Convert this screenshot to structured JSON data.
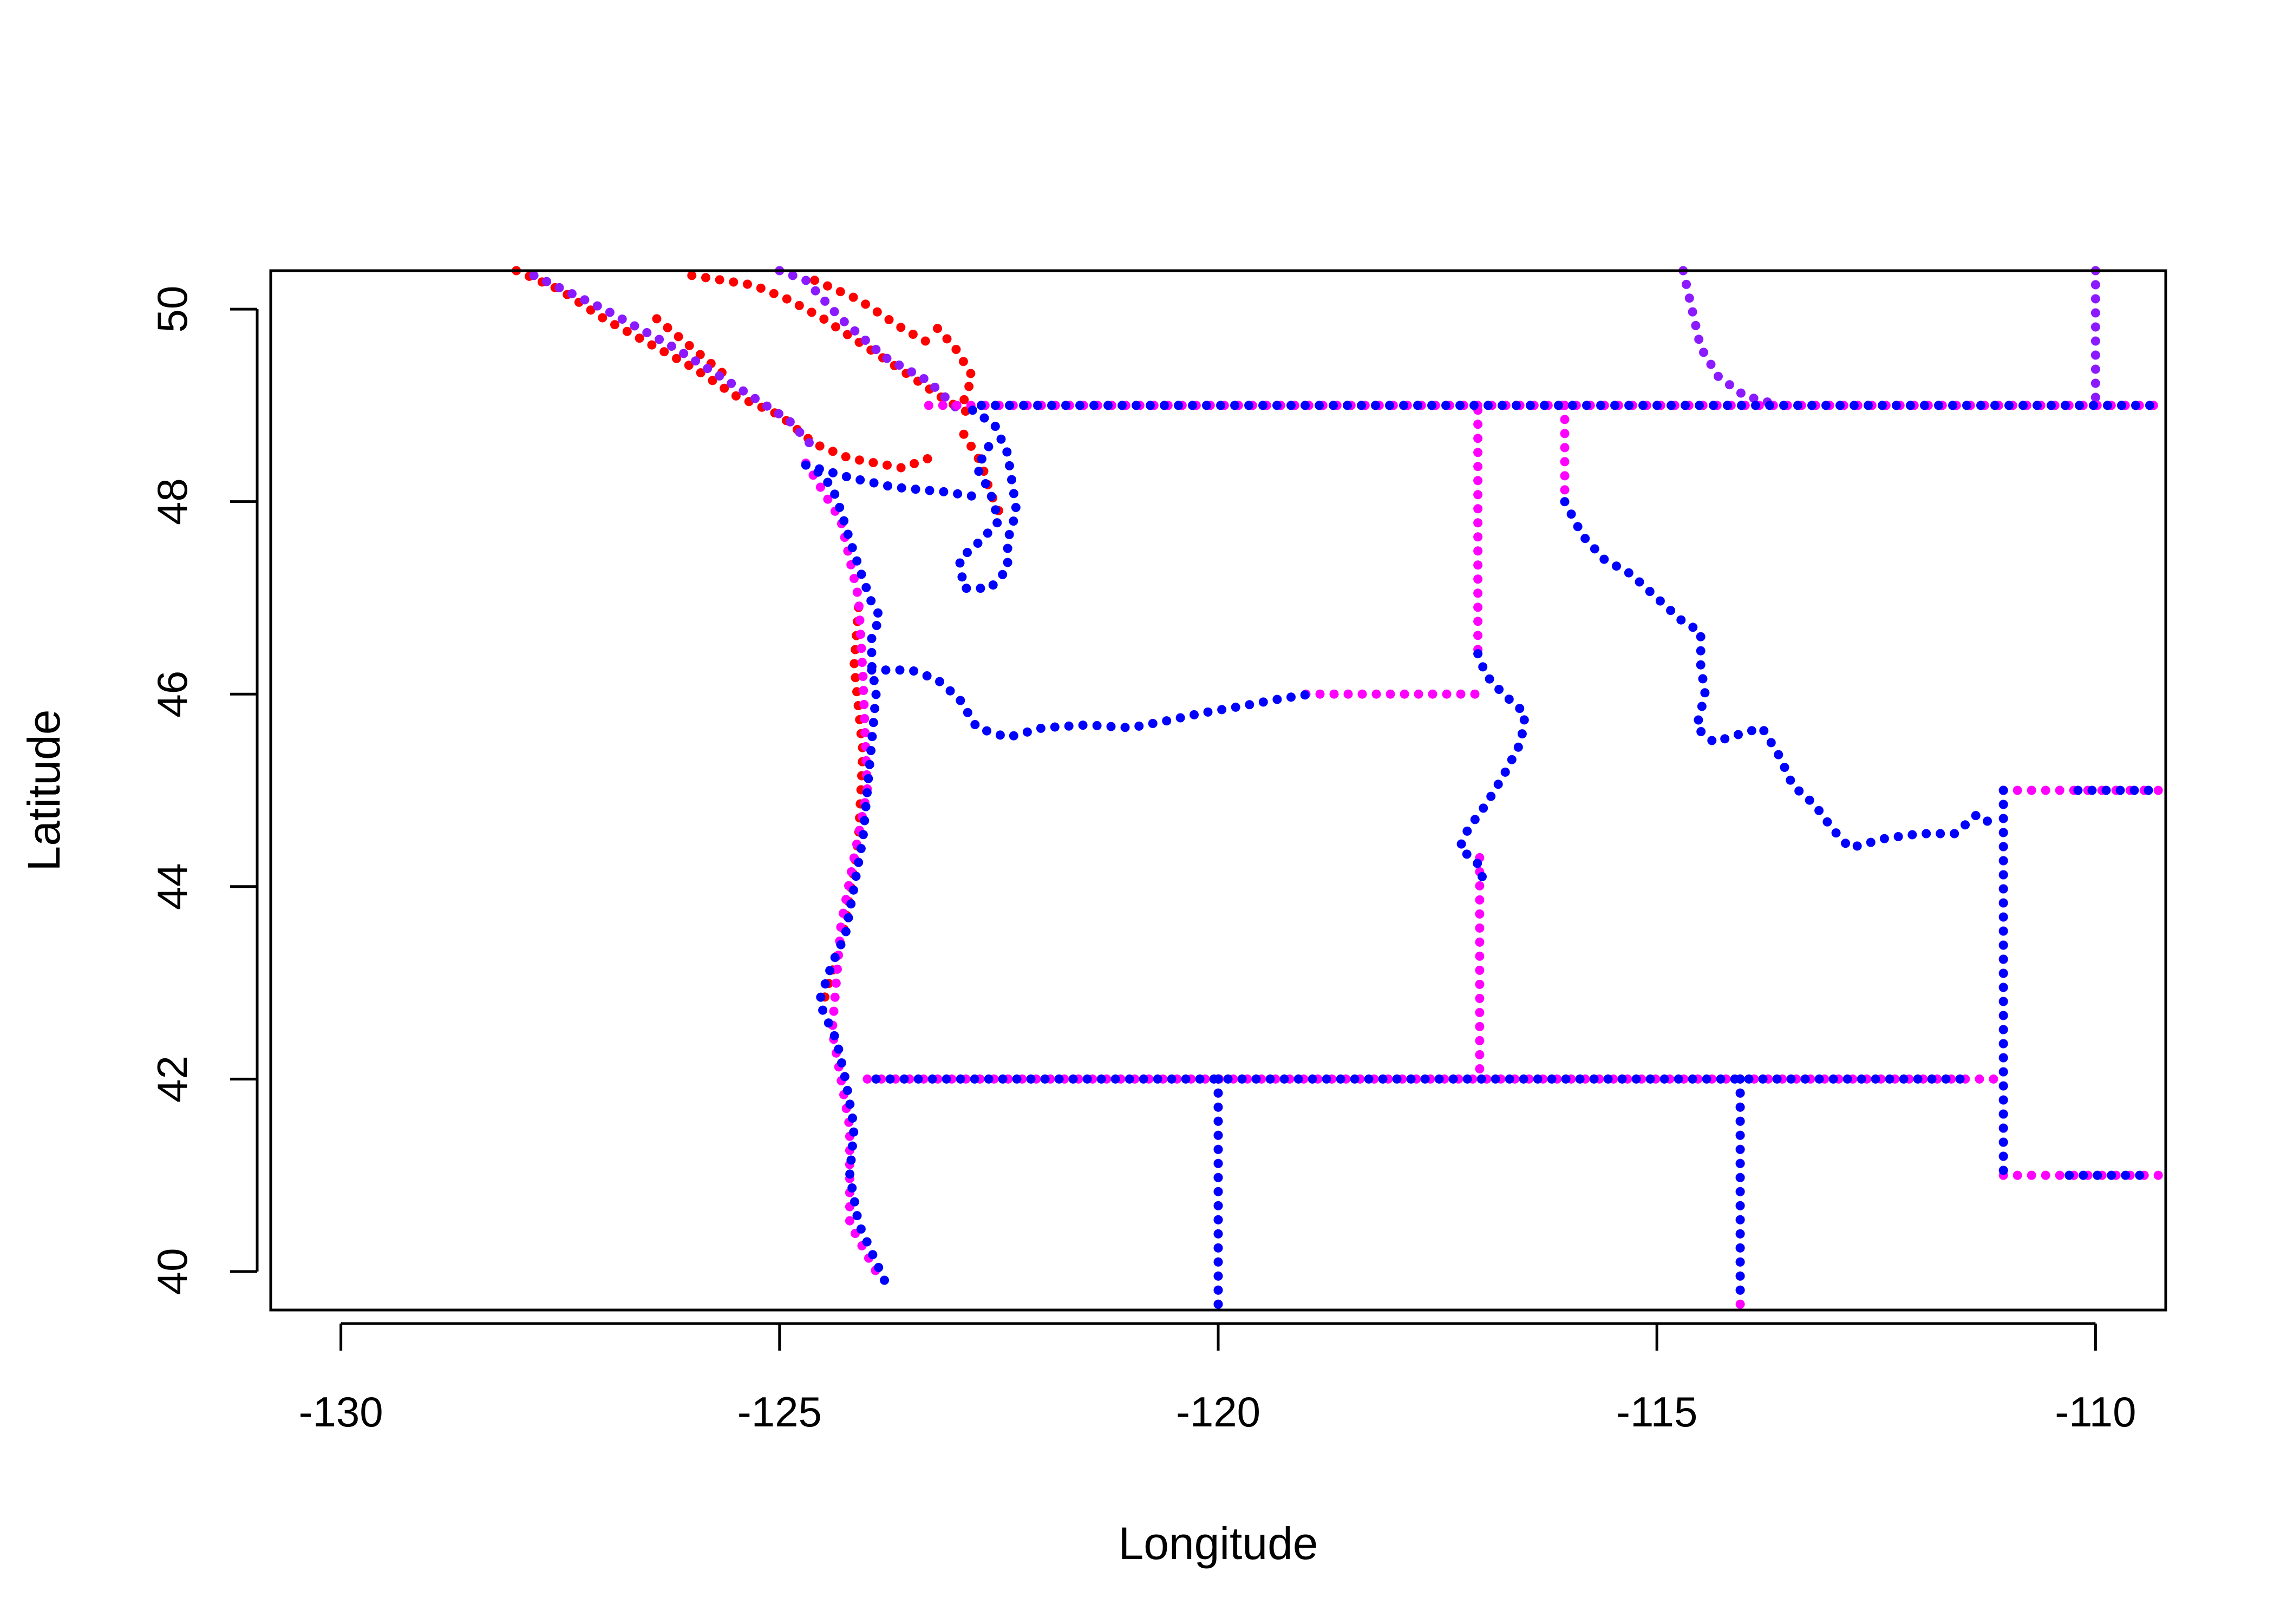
{
  "chart_data": {
    "type": "scatter",
    "title": "",
    "xlabel": "Longitude",
    "ylabel": "Latitude",
    "xlim": [
      -130.8,
      -109.2
    ],
    "ylim": [
      39.6,
      50.4
    ],
    "xticks": [
      -130,
      -125,
      -120,
      -115,
      -110
    ],
    "xtick_labels": [
      "-130",
      "-125",
      "-120",
      "-115",
      "-110"
    ],
    "yticks": [
      40,
      42,
      44,
      46,
      48,
      50
    ],
    "ytick_labels": [
      "40",
      "42",
      "44",
      "46",
      "48",
      "50"
    ],
    "grid": false,
    "legend": "none",
    "colors": {
      "red": "#ff0000",
      "purple": "#8b1aff",
      "magenta": "#ff00ff",
      "blue": "#0000ff"
    },
    "series": [
      {
        "color": "red",
        "note": "coastline points (British Columbia / Salish Sea)",
        "paths": [
          [
            [
              -128.0,
              50.4
            ],
            [
              -127.5,
              50.2
            ],
            [
              -127.0,
              49.9
            ],
            [
              -126.6,
              49.7
            ],
            [
              -126.0,
              49.4
            ],
            [
              -125.5,
              49.1
            ],
            [
              -125.0,
              48.9
            ],
            [
              -124.6,
              48.6
            ],
            [
              -124.2,
              48.45
            ],
            [
              -123.6,
              48.35
            ],
            [
              -123.3,
              48.45
            ]
          ],
          [
            [
              -126.4,
              49.9
            ],
            [
              -126.0,
              49.6
            ],
            [
              -125.6,
              49.3
            ]
          ],
          [
            [
              -126.0,
              50.35
            ],
            [
              -125.3,
              50.25
            ],
            [
              -124.9,
              50.1
            ],
            [
              -124.5,
              49.9
            ],
            [
              -124.0,
              49.6
            ],
            [
              -123.5,
              49.3
            ],
            [
              -123.1,
              49.05
            ],
            [
              -122.8,
              48.9
            ]
          ],
          [
            [
              -124.6,
              50.3
            ],
            [
              -124.1,
              50.1
            ],
            [
              -123.6,
              49.8
            ],
            [
              -123.2,
              49.6
            ]
          ],
          [
            [
              -123.2,
              49.8
            ],
            [
              -123.0,
              49.6
            ],
            [
              -122.8,
              49.3
            ],
            [
              -122.9,
              49.05
            ]
          ],
          [
            [
              -122.9,
              48.7
            ],
            [
              -122.7,
              48.4
            ],
            [
              -122.6,
              48.1
            ],
            [
              -122.5,
              47.9
            ]
          ],
          [
            [
              -124.1,
              46.9
            ],
            [
              -124.15,
              46.3
            ],
            [
              -124.05,
              45.4
            ],
            [
              -124.1,
              44.5
            ],
            [
              -124.25,
              43.6
            ],
            [
              -124.5,
              42.8
            ]
          ]
        ]
      },
      {
        "color": "purple",
        "note": "border and coastline points",
        "paths": [
          [
            [
              -127.8,
              50.35
            ],
            [
              -127.0,
              50.0
            ],
            [
              -126.2,
              49.6
            ],
            [
              -125.5,
              49.2
            ],
            [
              -124.9,
              48.85
            ],
            [
              -124.6,
              48.55
            ]
          ],
          [
            [
              -125.0,
              50.4
            ],
            [
              -124.7,
              50.3
            ],
            [
              -124.3,
              49.9
            ],
            [
              -123.8,
              49.5
            ],
            [
              -123.3,
              49.25
            ],
            [
              -122.9,
              48.9
            ]
          ],
          [
            [
              -114.7,
              50.4
            ],
            [
              -114.6,
              50.0
            ],
            [
              -114.5,
              49.6
            ],
            [
              -114.3,
              49.3
            ],
            [
              -114.0,
              49.1
            ],
            [
              -113.6,
              49.0
            ]
          ],
          [
            [
              -110.0,
              50.4
            ],
            [
              -110.0,
              49.9
            ],
            [
              -110.0,
              49.4
            ],
            [
              -110.0,
              49.0
            ]
          ]
        ]
      },
      {
        "color": "magenta",
        "note": "state border points",
        "paths": [
          [
            [
              -123.3,
              49.0
            ],
            [
              -122.8,
              49.0
            ],
            [
              -120.0,
              49.0
            ],
            [
              -117.0,
              49.0
            ],
            [
              -116.05,
              49.0
            ],
            [
              -113.0,
              49.0
            ],
            [
              -111.0,
              49.0
            ],
            [
              -109.2,
              49.0
            ]
          ],
          [
            [
              -117.04,
              48.95
            ],
            [
              -117.04,
              47.5
            ],
            [
              -117.04,
              46.45
            ]
          ],
          [
            [
              -116.05,
              49.0
            ],
            [
              -116.05,
              48.0
            ]
          ],
          [
            [
              -119.0,
              46.0
            ],
            [
              -118.0,
              46.0
            ],
            [
              -117.0,
              46.0
            ]
          ],
          [
            [
              -117.02,
              44.3
            ],
            [
              -117.02,
              43.0
            ],
            [
              -117.02,
              42.0
            ]
          ],
          [
            [
              -124.0,
              42.0
            ],
            [
              -122.0,
              42.0
            ],
            [
              -120.0,
              42.0
            ],
            [
              -118.0,
              42.0
            ],
            [
              -116.0,
              42.0
            ],
            [
              -114.0,
              42.0
            ],
            [
              -111.05,
              42.0
            ]
          ],
          [
            [
              -120.0,
              42.0
            ],
            [
              -120.0,
              41.0
            ],
            [
              -120.0,
              39.6
            ]
          ],
          [
            [
              -114.05,
              42.0
            ],
            [
              -114.05,
              41.0
            ],
            [
              -114.05,
              39.6
            ]
          ],
          [
            [
              -111.05,
              45.0
            ],
            [
              -111.05,
              43.0
            ],
            [
              -111.05,
              41.0
            ]
          ],
          [
            [
              -111.05,
              45.0
            ],
            [
              -109.2,
              45.0
            ]
          ],
          [
            [
              -111.05,
              41.0
            ],
            [
              -109.2,
              41.0
            ]
          ],
          [
            [
              -124.7,
              48.4
            ],
            [
              -124.3,
              47.8
            ],
            [
              -124.1,
              47.0
            ],
            [
              -124.05,
              46.2
            ],
            [
              -124.0,
              45.0
            ],
            [
              -124.3,
              43.6
            ],
            [
              -124.4,
              42.5
            ],
            [
              -124.2,
              41.5
            ],
            [
              -124.2,
              40.5
            ],
            [
              -123.9,
              40.0
            ]
          ]
        ]
      },
      {
        "color": "blue",
        "note": "coastline and state border points",
        "paths": [
          [
            [
              -124.7,
              48.38
            ],
            [
              -124.55,
              48.3
            ],
            [
              -124.4,
              48.15
            ],
            [
              -124.3,
              47.9
            ],
            [
              -124.2,
              47.6
            ],
            [
              -124.05,
              47.2
            ],
            [
              -123.95,
              46.95
            ],
            [
              -123.85,
              46.8
            ],
            [
              -123.95,
              46.6
            ],
            [
              -123.95,
              46.3
            ],
            [
              -123.9,
              46.0
            ],
            [
              -123.95,
              45.5
            ],
            [
              -124.0,
              45.0
            ],
            [
              -124.05,
              44.5
            ],
            [
              -124.15,
              44.0
            ],
            [
              -124.25,
              43.5
            ],
            [
              -124.4,
              43.2
            ],
            [
              -124.55,
              42.8
            ],
            [
              -124.35,
              42.4
            ],
            [
              -124.25,
              42.0
            ],
            [
              -124.15,
              41.5
            ],
            [
              -124.2,
              41.0
            ],
            [
              -124.1,
              40.5
            ],
            [
              -123.95,
              40.2
            ],
            [
              -123.75,
              39.8
            ]
          ],
          [
            [
              -124.7,
              48.38
            ],
            [
              -124.2,
              48.25
            ],
            [
              -123.7,
              48.15
            ],
            [
              -123.1,
              48.1
            ],
            [
              -122.75,
              48.05
            ]
          ],
          [
            [
              -122.8,
              48.95
            ],
            [
              -122.55,
              48.8
            ],
            [
              -122.4,
              48.5
            ],
            [
              -122.35,
              48.2
            ],
            [
              -122.3,
              47.9
            ],
            [
              -122.4,
              47.6
            ],
            [
              -122.4,
              47.3
            ],
            [
              -122.6,
              47.1
            ],
            [
              -122.9,
              47.1
            ],
            [
              -122.95,
              47.4
            ],
            [
              -122.7,
              47.6
            ],
            [
              -122.5,
              47.8
            ],
            [
              -122.6,
              48.1
            ],
            [
              -122.75,
              48.35
            ],
            [
              -122.6,
              48.6
            ]
          ],
          [
            [
              -123.95,
              46.25
            ],
            [
              -123.5,
              46.25
            ],
            [
              -123.2,
              46.15
            ],
            [
              -122.95,
              45.95
            ],
            [
              -122.75,
              45.65
            ],
            [
              -122.4,
              45.55
            ],
            [
              -122.0,
              45.65
            ],
            [
              -121.5,
              45.68
            ],
            [
              -121.0,
              45.65
            ],
            [
              -120.6,
              45.72
            ],
            [
              -120.2,
              45.8
            ],
            [
              -119.7,
              45.88
            ],
            [
              -119.3,
              45.95
            ],
            [
              -118.95,
              46.0
            ]
          ],
          [
            [
              -117.04,
              46.42
            ],
            [
              -116.95,
              46.2
            ],
            [
              -116.75,
              46.0
            ],
            [
              -116.5,
              45.8
            ],
            [
              -116.55,
              45.5
            ],
            [
              -116.75,
              45.15
            ],
            [
              -116.95,
              44.85
            ],
            [
              -117.15,
              44.6
            ],
            [
              -117.25,
              44.4
            ],
            [
              -117.05,
              44.25
            ],
            [
              -116.95,
              44.0
            ]
          ],
          [
            [
              -116.05,
              48.0
            ],
            [
              -115.85,
              47.65
            ],
            [
              -115.6,
              47.4
            ],
            [
              -115.3,
              47.25
            ],
            [
              -115.0,
              47.0
            ],
            [
              -114.7,
              46.75
            ],
            [
              -114.5,
              46.65
            ],
            [
              -114.5,
              46.3
            ],
            [
              -114.45,
              46.0
            ],
            [
              -114.55,
              45.65
            ],
            [
              -114.35,
              45.5
            ],
            [
              -114.0,
              45.6
            ],
            [
              -113.8,
              45.65
            ],
            [
              -113.6,
              45.35
            ],
            [
              -113.45,
              45.05
            ],
            [
              -113.2,
              44.85
            ],
            [
              -113.0,
              44.6
            ],
            [
              -112.8,
              44.4
            ],
            [
              -112.4,
              44.5
            ],
            [
              -112.0,
              44.55
            ],
            [
              -111.6,
              44.55
            ],
            [
              -111.35,
              44.75
            ],
            [
              -111.1,
              44.6
            ]
          ],
          [
            [
              -122.7,
              49.0
            ],
            [
              -121.0,
              49.0
            ],
            [
              -119.0,
              49.0
            ],
            [
              -117.1,
              49.0
            ],
            [
              -116.0,
              49.0
            ],
            [
              -114.0,
              49.0
            ],
            [
              -112.0,
              49.0
            ],
            [
              -109.3,
              49.0
            ]
          ],
          [
            [
              -123.9,
              42.0
            ],
            [
              -122.0,
              42.0
            ],
            [
              -119.5,
              42.0
            ],
            [
              -117.0,
              42.0
            ],
            [
              -115.0,
              42.0
            ],
            [
              -113.0,
              42.0
            ],
            [
              -111.5,
              42.0
            ]
          ],
          [
            [
              -120.0,
              42.0
            ],
            [
              -120.0,
              39.6
            ]
          ],
          [
            [
              -114.05,
              42.0
            ],
            [
              -114.05,
              39.8
            ]
          ],
          [
            [
              -111.05,
              45.0
            ],
            [
              -111.05,
              41.0
            ]
          ],
          [
            [
              -110.2,
              45.0
            ],
            [
              -109.3,
              45.0
            ]
          ],
          [
            [
              -110.3,
              41.0
            ],
            [
              -109.4,
              41.0
            ]
          ]
        ]
      }
    ]
  }
}
